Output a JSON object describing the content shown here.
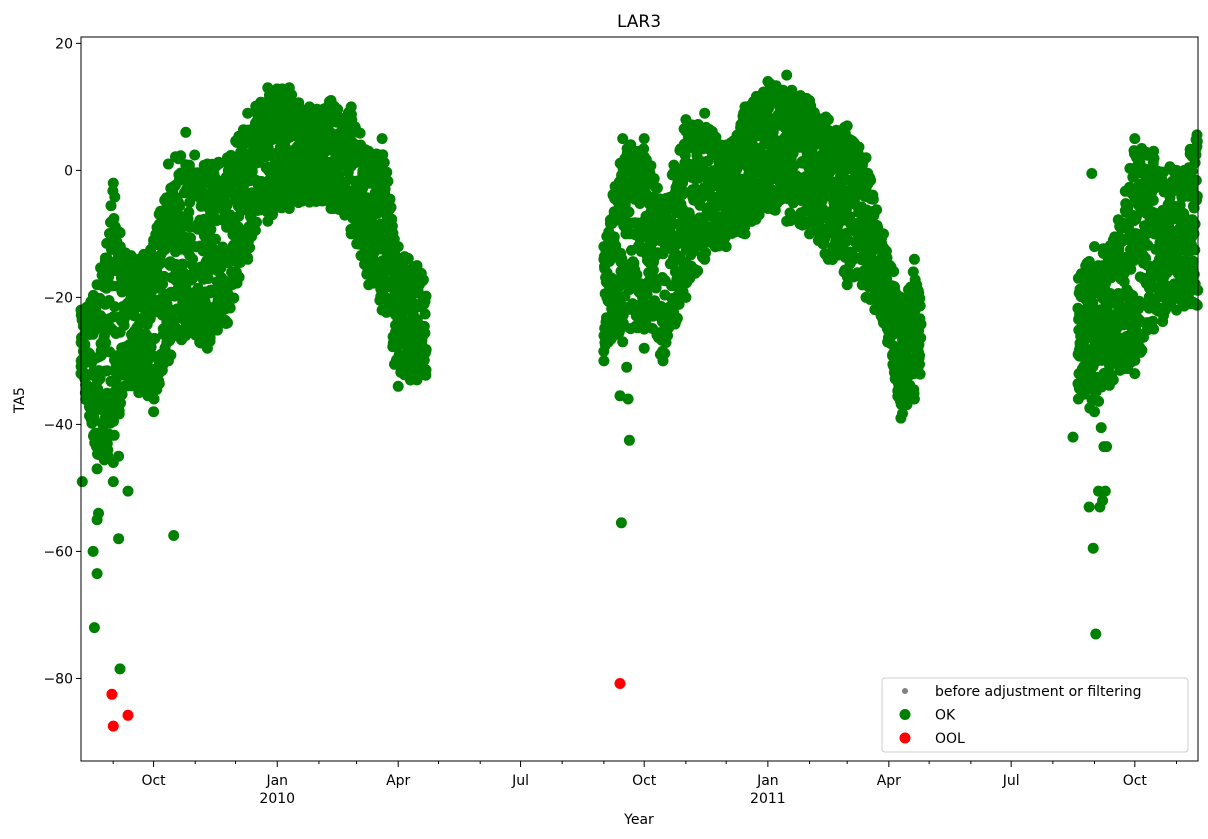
{
  "chart_data": {
    "type": "scatter",
    "title": "LAR3",
    "xlabel": "Year",
    "ylabel": "TA5",
    "xlim": [
      "2009-08-08",
      "2011-11-17"
    ],
    "ylim": [
      -93,
      21
    ],
    "y_ticks": [
      20,
      0,
      -20,
      -40,
      -60,
      -80
    ],
    "y_tick_labels": [
      "20",
      "0",
      "−20",
      "−40",
      "−60",
      "−80"
    ],
    "x_ticks": [
      {
        "date": "2009-10-01",
        "label": "Oct",
        "sub": ""
      },
      {
        "date": "2010-01-01",
        "label": "Jan",
        "sub": "2010"
      },
      {
        "date": "2010-04-01",
        "label": "Apr",
        "sub": ""
      },
      {
        "date": "2010-07-01",
        "label": "Jul",
        "sub": ""
      },
      {
        "date": "2010-10-01",
        "label": "Oct",
        "sub": ""
      },
      {
        "date": "2011-01-01",
        "label": "Jan",
        "sub": "2011"
      },
      {
        "date": "2011-04-01",
        "label": "Apr",
        "sub": ""
      },
      {
        "date": "2011-07-01",
        "label": "Jul",
        "sub": ""
      },
      {
        "date": "2011-10-01",
        "label": "Oct",
        "sub": ""
      }
    ],
    "x_minor_ticks": [
      "2009-09-01",
      "2009-11-01",
      "2009-12-01",
      "2010-02-01",
      "2010-03-01",
      "2010-05-01",
      "2010-06-01",
      "2010-08-01",
      "2010-09-01",
      "2010-11-01",
      "2010-12-01",
      "2011-02-01",
      "2011-03-01",
      "2011-05-01",
      "2011-06-01",
      "2011-08-01",
      "2011-09-01",
      "2011-11-01"
    ],
    "legend": {
      "position": "lower-right",
      "entries": [
        {
          "label": "before adjustment or filtering",
          "color": "#808080",
          "marker": "small-dot"
        },
        {
          "label": "OK",
          "color": "#008000",
          "marker": "dot"
        },
        {
          "label": "OOL",
          "color": "#ff0000",
          "marker": "dot"
        }
      ]
    },
    "series": [
      {
        "name": "OK",
        "color": "#008000",
        "envelope": [
          {
            "x": "2009-08-08",
            "lo": -32,
            "hi": -22
          },
          {
            "x": "2009-08-20",
            "lo": -47,
            "hi": -18
          },
          {
            "x": "2009-09-01",
            "lo": -46,
            "hi": -2
          },
          {
            "x": "2009-09-10",
            "lo": -34,
            "hi": -13
          },
          {
            "x": "2009-09-20",
            "lo": -35,
            "hi": -14
          },
          {
            "x": "2009-10-01",
            "lo": -38,
            "hi": -11
          },
          {
            "x": "2009-10-12",
            "lo": -30,
            "hi": 1
          },
          {
            "x": "2009-10-25",
            "lo": -26,
            "hi": 6
          },
          {
            "x": "2009-11-10",
            "lo": -28,
            "hi": 1
          },
          {
            "x": "2009-11-25",
            "lo": -24,
            "hi": 2
          },
          {
            "x": "2009-12-10",
            "lo": -14,
            "hi": 9
          },
          {
            "x": "2009-12-25",
            "lo": -8,
            "hi": 13
          },
          {
            "x": "2010-01-10",
            "lo": -6,
            "hi": 13
          },
          {
            "x": "2010-01-25",
            "lo": -5,
            "hi": 10
          },
          {
            "x": "2010-02-10",
            "lo": -6,
            "hi": 11
          },
          {
            "x": "2010-02-25",
            "lo": -10,
            "hi": 10
          },
          {
            "x": "2010-03-10",
            "lo": -18,
            "hi": 3
          },
          {
            "x": "2010-03-20",
            "lo": -22,
            "hi": 5
          },
          {
            "x": "2010-04-01",
            "lo": -34,
            "hi": -12
          },
          {
            "x": "2010-04-15",
            "lo": -33,
            "hi": -15
          },
          {
            "x": "2010-04-22",
            "lo": -33,
            "hi": -15
          },
          {
            "x": "2010-09-01",
            "lo": -30,
            "hi": -12
          },
          {
            "x": "2010-09-15",
            "lo": -27,
            "hi": 5
          },
          {
            "x": "2010-10-01",
            "lo": -25,
            "hi": 5
          },
          {
            "x": "2010-10-15",
            "lo": -30,
            "hi": -5
          },
          {
            "x": "2010-11-01",
            "lo": -20,
            "hi": 8
          },
          {
            "x": "2010-11-15",
            "lo": -14,
            "hi": 9
          },
          {
            "x": "2010-12-01",
            "lo": -12,
            "hi": 4
          },
          {
            "x": "2010-12-15",
            "lo": -10,
            "hi": 10
          },
          {
            "x": "2011-01-01",
            "lo": -6,
            "hi": 14
          },
          {
            "x": "2011-01-15",
            "lo": -8,
            "hi": 15
          },
          {
            "x": "2011-02-01",
            "lo": -10,
            "hi": 11
          },
          {
            "x": "2011-02-15",
            "lo": -14,
            "hi": 8
          },
          {
            "x": "2011-03-01",
            "lo": -18,
            "hi": 7
          },
          {
            "x": "2011-03-15",
            "lo": -20,
            "hi": 2
          },
          {
            "x": "2011-03-28",
            "lo": -24,
            "hi": -10
          },
          {
            "x": "2011-04-10",
            "lo": -39,
            "hi": -20
          },
          {
            "x": "2011-04-20",
            "lo": -36,
            "hi": -14
          },
          {
            "x": "2011-04-25",
            "lo": -33,
            "hi": -20
          },
          {
            "x": "2011-08-20",
            "lo": -36,
            "hi": -17
          },
          {
            "x": "2011-09-01",
            "lo": -38,
            "hi": -12
          },
          {
            "x": "2011-09-15",
            "lo": -33,
            "hi": -11
          },
          {
            "x": "2011-10-01",
            "lo": -32,
            "hi": 5
          },
          {
            "x": "2011-10-15",
            "lo": -25,
            "hi": 3
          },
          {
            "x": "2011-11-01",
            "lo": -22,
            "hi": 0
          },
          {
            "x": "2011-11-17",
            "lo": -22,
            "hi": 7
          }
        ],
        "outliers": [
          {
            "x": "2009-08-09",
            "y": -49
          },
          {
            "x": "2009-08-17",
            "y": -60
          },
          {
            "x": "2009-08-18",
            "y": -72
          },
          {
            "x": "2009-08-20",
            "y": -63.5
          },
          {
            "x": "2009-08-20",
            "y": -55
          },
          {
            "x": "2009-08-21",
            "y": -54
          },
          {
            "x": "2009-09-01",
            "y": -49
          },
          {
            "x": "2009-09-01",
            "y": -38
          },
          {
            "x": "2009-09-05",
            "y": -58
          },
          {
            "x": "2009-09-06",
            "y": -78.5
          },
          {
            "x": "2009-09-05",
            "y": -45
          },
          {
            "x": "2009-09-12",
            "y": -50.5
          },
          {
            "x": "2009-10-16",
            "y": -57.5
          },
          {
            "x": "2010-09-13",
            "y": -35.5
          },
          {
            "x": "2010-09-14",
            "y": -55.5
          },
          {
            "x": "2010-09-18",
            "y": -31
          },
          {
            "x": "2010-09-19",
            "y": -36
          },
          {
            "x": "2010-09-20",
            "y": -42.5
          },
          {
            "x": "2010-10-01",
            "y": -28
          },
          {
            "x": "2011-08-16",
            "y": -42
          },
          {
            "x": "2011-08-28",
            "y": -53
          },
          {
            "x": "2011-08-30",
            "y": -0.5
          },
          {
            "x": "2011-08-31",
            "y": -59.5
          },
          {
            "x": "2011-09-02",
            "y": -73
          },
          {
            "x": "2011-09-04",
            "y": -50.5
          },
          {
            "x": "2011-09-05",
            "y": -53
          },
          {
            "x": "2011-09-07",
            "y": -52
          },
          {
            "x": "2011-09-08",
            "y": -43.5
          },
          {
            "x": "2011-09-10",
            "y": -43.5
          },
          {
            "x": "2011-09-09",
            "y": -50.5
          },
          {
            "x": "2011-09-06",
            "y": -40.5
          }
        ]
      },
      {
        "name": "OOL",
        "color": "#ff0000",
        "points": [
          {
            "x": "2009-08-31",
            "y": -82.5
          },
          {
            "x": "2009-09-01",
            "y": -87.5
          },
          {
            "x": "2009-09-12",
            "y": -85.8
          },
          {
            "x": "2010-09-13",
            "y": -80.8
          }
        ]
      }
    ]
  }
}
